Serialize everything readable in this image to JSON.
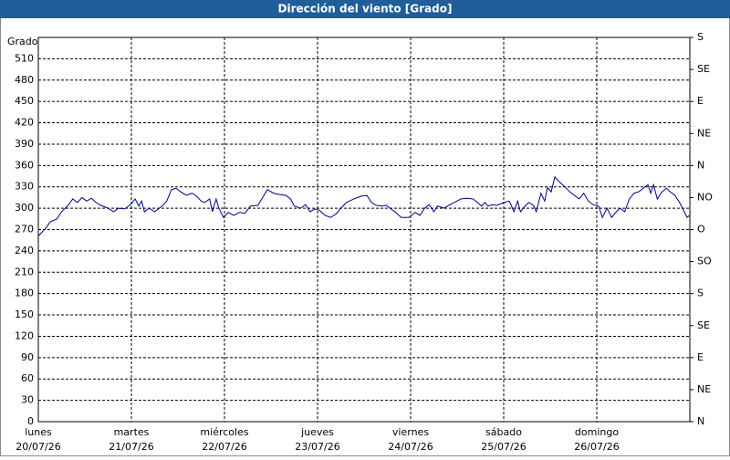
{
  "chart_data": {
    "type": "line",
    "title": "Dirección del viento [Grado]",
    "y_axis_label": "Grado",
    "xlim": [
      0,
      7
    ],
    "xticks": [
      {
        "value": 0,
        "label": "lunes",
        "date": "20/07/26"
      },
      {
        "value": 1,
        "label": "martes",
        "date": "21/07/26"
      },
      {
        "value": 2,
        "label": "miércoles",
        "date": "22/07/26"
      },
      {
        "value": 3,
        "label": "jueves",
        "date": "23/07/26"
      },
      {
        "value": 4,
        "label": "viernes",
        "date": "24/07/26"
      },
      {
        "value": 5,
        "label": "sábado",
        "date": "25/07/26"
      },
      {
        "value": 6,
        "label": "domingo",
        "date": "26/07/26"
      }
    ],
    "ylim": [
      0,
      540
    ],
    "yticks": [
      0,
      30,
      60,
      90,
      120,
      150,
      180,
      210,
      240,
      270,
      300,
      330,
      360,
      390,
      420,
      450,
      480,
      510
    ],
    "y2lim": [
      0,
      540
    ],
    "y2ticks": [
      {
        "value": 0,
        "label": "N"
      },
      {
        "value": 45,
        "label": "NE"
      },
      {
        "value": 90,
        "label": "E"
      },
      {
        "value": 135,
        "label": "SE"
      },
      {
        "value": 180,
        "label": "S"
      },
      {
        "value": 225,
        "label": "SO"
      },
      {
        "value": 270,
        "label": "O"
      },
      {
        "value": 315,
        "label": "NO"
      },
      {
        "value": 360,
        "label": "N"
      },
      {
        "value": 405,
        "label": "NE"
      },
      {
        "value": 450,
        "label": "E"
      },
      {
        "value": 495,
        "label": "SE"
      },
      {
        "value": 540,
        "label": "S"
      }
    ],
    "grid": true,
    "x": [
      0,
      0.08,
      0.13,
      0.2,
      0.25,
      0.32,
      0.37,
      0.42,
      0.47,
      0.52,
      0.57,
      0.62,
      0.67,
      0.75,
      0.81,
      0.86,
      0.93,
      0.99,
      1.04,
      1.08,
      1.11,
      1.14,
      1.19,
      1.25,
      1.33,
      1.38,
      1.43,
      1.48,
      1.53,
      1.59,
      1.65,
      1.7,
      1.75,
      1.79,
      1.84,
      1.87,
      1.91,
      1.94,
      1.99,
      2.04,
      2.1,
      2.16,
      2.22,
      2.28,
      2.36,
      2.41,
      2.46,
      2.53,
      2.6,
      2.66,
      2.71,
      2.75,
      2.82,
      2.87,
      2.92,
      2.97,
      3.02,
      3.08,
      3.14,
      3.2,
      3.25,
      3.31,
      3.39,
      3.47,
      3.53,
      3.58,
      3.63,
      3.69,
      3.74,
      3.78,
      3.83,
      3.9,
      3.98,
      4.05,
      4.1,
      4.15,
      4.2,
      4.25,
      4.29,
      4.36,
      4.41,
      4.47,
      4.54,
      4.61,
      4.67,
      4.72,
      4.76,
      4.8,
      4.83,
      4.88,
      4.93,
      5,
      5.06,
      5.11,
      5.15,
      5.18,
      5.23,
      5.27,
      5.32,
      5.35,
      5.4,
      5.44,
      5.47,
      5.51,
      5.55,
      5.59,
      5.65,
      5.71,
      5.76,
      5.81,
      5.86,
      5.91,
      5.96,
      6.02,
      6.06,
      6.11,
      6.16,
      6.21,
      6.25,
      6.3,
      6.35,
      6.4,
      6.45,
      6.5,
      6.55,
      6.58,
      6.61,
      6.65,
      6.7,
      6.75,
      6.79,
      6.84,
      6.89,
      6.94,
      6.97,
      7.0
    ],
    "series": [
      {
        "color": "#00008b",
        "values": [
          261,
          272,
          281,
          285,
          295,
          304,
          313,
          308,
          315,
          310,
          314,
          308,
          304,
          300,
          295,
          300,
          299,
          305,
          313,
          303,
          310,
          295,
          300,
          295,
          303,
          310,
          326,
          328,
          323,
          318,
          321,
          317,
          310,
          308,
          313,
          295,
          313,
          300,
          287,
          294,
          290,
          294,
          293,
          303,
          304,
          315,
          326,
          321,
          319,
          318,
          313,
          303,
          300,
          305,
          295,
          299,
          297,
          290,
          287,
          292,
          300,
          308,
          313,
          317,
          318,
          308,
          304,
          303,
          304,
          300,
          295,
          287,
          287,
          294,
          290,
          300,
          305,
          295,
          303,
          300,
          304,
          308,
          313,
          314,
          313,
          308,
          303,
          308,
          303,
          305,
          304,
          308,
          310,
          295,
          310,
          295,
          303,
          308,
          304,
          295,
          321,
          310,
          329,
          323,
          344,
          338,
          331,
          323,
          318,
          313,
          321,
          310,
          305,
          303,
          287,
          300,
          287,
          295,
          300,
          295,
          313,
          321,
          323,
          328,
          333,
          321,
          333,
          313,
          323,
          328,
          323,
          318,
          308,
          295,
          287,
          290
        ]
      }
    ]
  }
}
